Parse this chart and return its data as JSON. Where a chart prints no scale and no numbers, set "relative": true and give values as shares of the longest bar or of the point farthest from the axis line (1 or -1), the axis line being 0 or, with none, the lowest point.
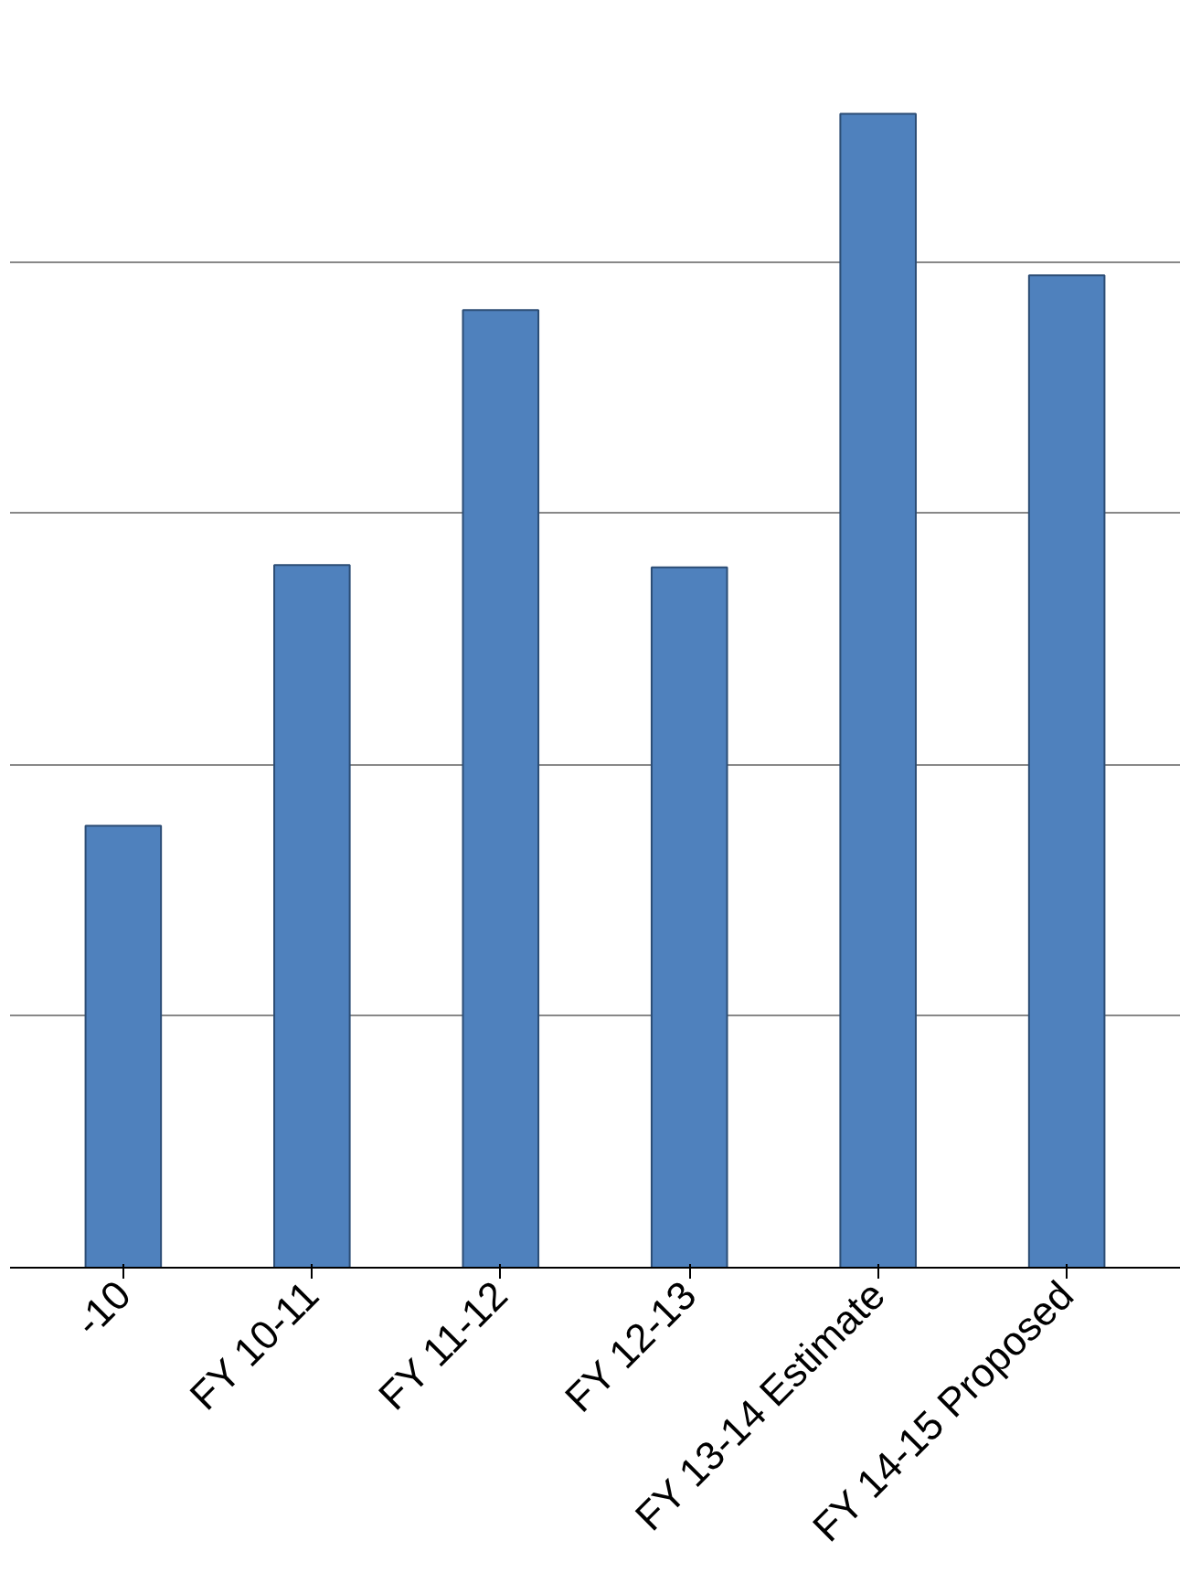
{
  "chart_data": {
    "type": "bar",
    "relative": true,
    "categories": [
      "-10",
      "FY 10-11",
      "FY 11-12",
      "FY 12-13",
      "FY 13-14 Estimate",
      "FY 14-15 Proposed"
    ],
    "values": [
      0.383,
      0.609,
      0.83,
      0.607,
      1,
      0.86
    ],
    "color": "#4f81bd",
    "grid": "y"
  }
}
